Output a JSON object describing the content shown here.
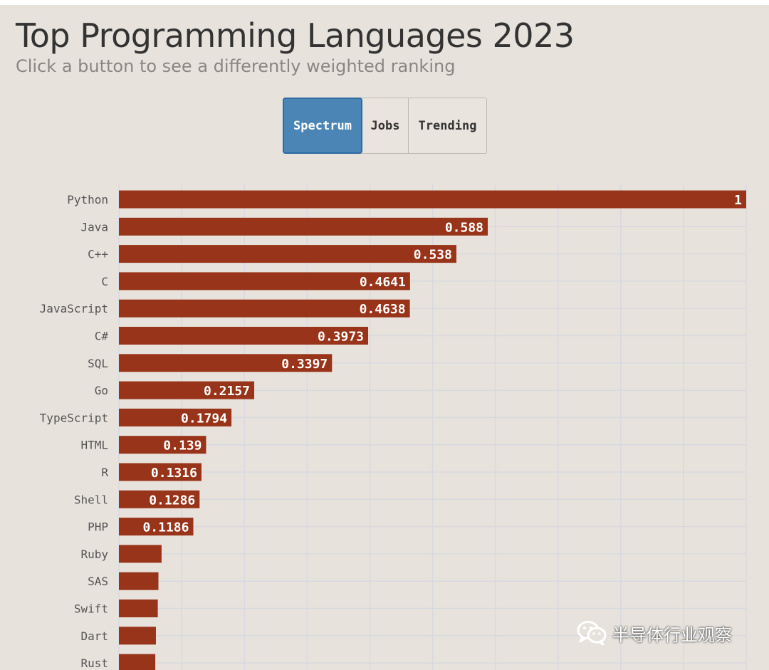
{
  "header": {
    "title": "Top Programming Languages 2023",
    "subtitle": "Click a button to see a differently weighted ranking"
  },
  "toggle": {
    "buttons": [
      {
        "label": "Spectrum",
        "active": true
      },
      {
        "label": "Jobs",
        "active": false
      },
      {
        "label": "Trending",
        "active": false
      }
    ]
  },
  "watermark": {
    "text": "半导体行业观察",
    "icon": "wechat-icon"
  },
  "colors": {
    "bar": "#983419",
    "active_button": "#4a85b5",
    "background": "#e7e2dc",
    "grid": "#d8d9df"
  },
  "chart_data": {
    "type": "bar",
    "orientation": "horizontal",
    "categories": [
      "Python",
      "Java",
      "C++",
      "C",
      "JavaScript",
      "C#",
      "SQL",
      "Go",
      "TypeScript",
      "HTML",
      "R",
      "Shell",
      "PHP",
      "Ruby",
      "SAS",
      "Swift",
      "Dart",
      "Rust"
    ],
    "values": [
      1,
      0.588,
      0.538,
      0.4641,
      0.4638,
      0.3973,
      0.3397,
      0.2157,
      0.1794,
      0.139,
      0.1316,
      0.1286,
      0.1186,
      0.068,
      0.063,
      0.062,
      0.059,
      0.058
    ],
    "value_labels": [
      "1",
      "0.588",
      "0.538",
      "0.4641",
      "0.4638",
      "0.3973",
      "0.3397",
      "0.2157",
      "0.1794",
      "0.139",
      "0.1316",
      "0.1286",
      "0.1186",
      "",
      "",
      "",
      "",
      ""
    ],
    "xlim": [
      0,
      1
    ],
    "grid": true,
    "legend": "none"
  }
}
